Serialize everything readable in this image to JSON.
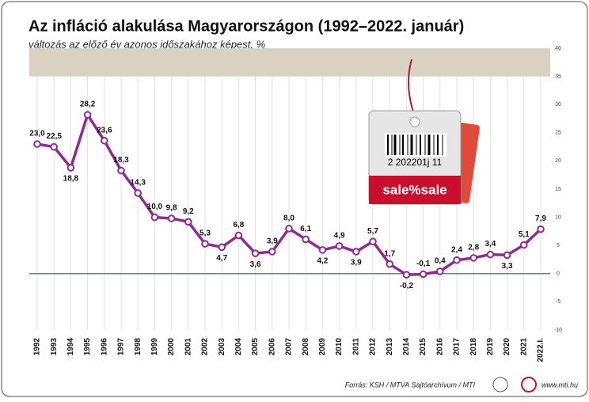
{
  "chart_data": {
    "type": "line",
    "title": "Az infláció alakulása Magyarországon (1992–2022. január)",
    "subtitle": "változás az előző év azonos időszakához képest, %",
    "source": "Forrás: KSH / MTVA Sajtóarchívum / MTI",
    "website": "www.mti.hu",
    "tag_barcode": "2 202201j 11",
    "tag_text": "sale%sale",
    "categories": [
      "1992",
      "1993",
      "1994",
      "1995",
      "1996",
      "1997",
      "1998",
      "1999",
      "2000",
      "2001",
      "2002",
      "2003",
      "2004",
      "2005",
      "2006",
      "2007",
      "2008",
      "2009",
      "2010",
      "2011",
      "2012",
      "2013",
      "2014",
      "2015",
      "2016",
      "2017",
      "2018",
      "2019",
      "2020",
      "2021",
      "2022.I."
    ],
    "series": [
      {
        "name": "infláció",
        "color": "#8e2c8e",
        "values": [
          23.0,
          22.5,
          18.8,
          28.2,
          23.6,
          18.3,
          14.3,
          10.0,
          9.8,
          9.2,
          5.3,
          4.7,
          6.8,
          3.6,
          3.9,
          8.0,
          6.1,
          4.2,
          4.9,
          3.9,
          5.7,
          1.7,
          -0.2,
          -0.1,
          0.4,
          2.4,
          2.8,
          3.4,
          3.3,
          5.1,
          7.9
        ],
        "value_labels": [
          "23,0",
          "22,5",
          "18,8",
          "28,2",
          "23,6",
          "18,3",
          "14,3",
          "10,0",
          "9,8",
          "9,2",
          "5,3",
          "4,7",
          "6,8",
          "3,6",
          "3,9",
          "8,0",
          "6,1",
          "4,2",
          "4,9",
          "3,9",
          "5,7",
          "1,7",
          "-0,2",
          "-0,1",
          "0,4",
          "2,4",
          "2,8",
          "3,4",
          "3,3",
          "5,1",
          "7,9"
        ]
      }
    ],
    "ylim": [
      -10,
      40
    ],
    "yticks": [
      -10,
      -5,
      0,
      5,
      10,
      15,
      20,
      25,
      30,
      35,
      40
    ],
    "band": [
      35,
      40
    ],
    "grid": true
  }
}
